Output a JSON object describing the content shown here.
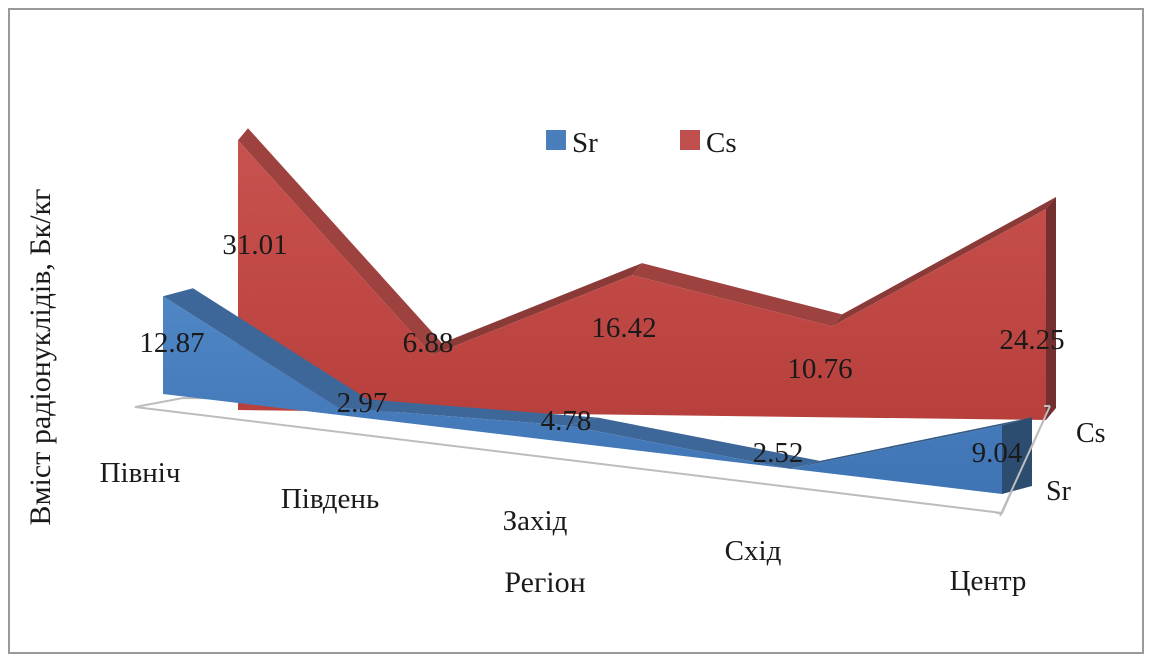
{
  "chart_data": {
    "type": "area",
    "subtype": "3d-area",
    "title": "",
    "xlabel": "Регіон",
    "ylabel": "Вміст радіонуклідів, Бк/кг",
    "categories": [
      "Північ",
      "Південь",
      "Захід",
      "Схід",
      "Центр"
    ],
    "series": [
      {
        "name": "Sr",
        "values": [
          12.87,
          2.97,
          4.78,
          2.52,
          9.04
        ],
        "color": "#4a7ebb"
      },
      {
        "name": "Cs",
        "values": [
          31.01,
          6.88,
          16.42,
          10.76,
          24.25
        ],
        "color": "#c0504d"
      }
    ],
    "depth_axis_labels": [
      "Cs",
      "Sr"
    ],
    "legend": {
      "position": "top",
      "items": [
        "Sr",
        "Cs"
      ]
    },
    "data_labels": true,
    "grid": false
  }
}
